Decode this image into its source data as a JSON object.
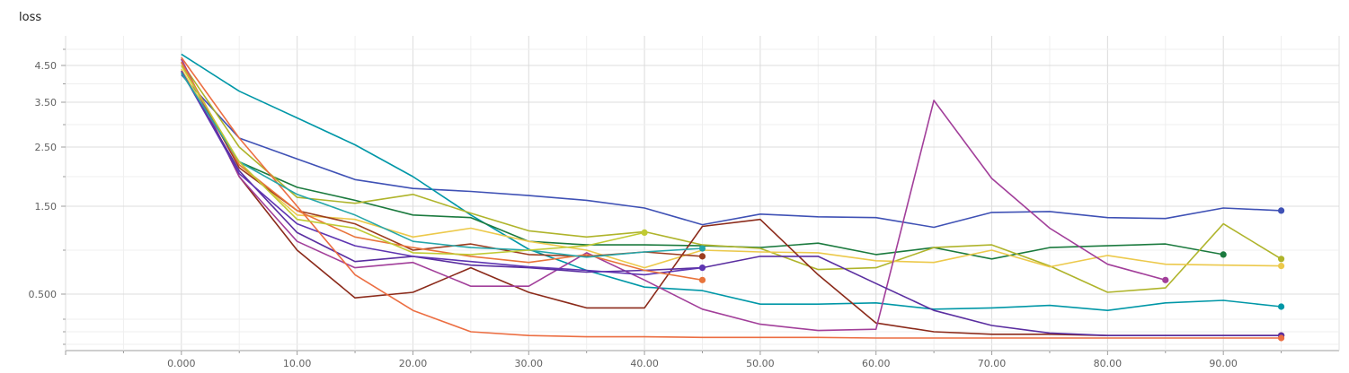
{
  "chart_data": {
    "type": "line",
    "title": "loss",
    "xlabel": "",
    "ylabel": "",
    "xlim": [
      -10,
      100
    ],
    "ylim": [
      0.05,
      5.25
    ],
    "grid": true,
    "x_ticks": [
      0,
      10,
      20,
      30,
      40,
      50,
      60,
      70,
      80,
      90
    ],
    "x_tick_labels": [
      "0.000",
      "10.00",
      "20.00",
      "30.00",
      "40.00",
      "50.00",
      "60.00",
      "70.00",
      "80.00",
      "90.00"
    ],
    "y_ticks": [
      0.5,
      1.5,
      2.5,
      3.5,
      4.5
    ],
    "y_tick_labels": [
      "0.500",
      "1.50",
      "2.50",
      "3.50",
      "4.50"
    ],
    "series": [
      {
        "color": "#3f51b5",
        "x": [
          0,
          5,
          10,
          15,
          20,
          25,
          30,
          35,
          40,
          45,
          50,
          55,
          60,
          65,
          70,
          75,
          80,
          85,
          90,
          95
        ],
        "y": [
          4.25,
          2.7,
          2.3,
          1.95,
          1.8,
          1.75,
          1.68,
          1.6,
          1.48,
          1.29,
          1.41,
          1.38,
          1.37,
          1.26,
          1.43,
          1.44,
          1.37,
          1.36,
          1.48,
          1.45
        ]
      },
      {
        "color": "#0097a7",
        "x": [
          0,
          5,
          10,
          15,
          20,
          25,
          30,
          35,
          40,
          45,
          50,
          55,
          60,
          65,
          70,
          75,
          80,
          85,
          90,
          95
        ],
        "y": [
          4.85,
          3.8,
          3.15,
          2.55,
          2.0,
          1.4,
          1.01,
          0.77,
          0.58,
          0.54,
          0.42,
          0.42,
          0.43,
          0.38,
          0.39,
          0.41,
          0.37,
          0.43,
          0.45,
          0.4
        ]
      },
      {
        "color": "#1b7a3e",
        "x": [
          0,
          5,
          10,
          15,
          20,
          25,
          30,
          35,
          40,
          45,
          50,
          55,
          60,
          65,
          70,
          75,
          80,
          85,
          90
        ],
        "y": [
          4.3,
          2.25,
          1.82,
          1.6,
          1.4,
          1.37,
          1.1,
          1.06,
          1.06,
          1.05,
          1.03,
          1.08,
          0.95,
          1.03,
          0.9,
          1.03,
          1.05,
          1.07,
          0.95
        ]
      },
      {
        "color": "#afb42b",
        "x": [
          0,
          5,
          10,
          15,
          20,
          25,
          30,
          35,
          40,
          45,
          50,
          55,
          60,
          65,
          70,
          75,
          80,
          85,
          90,
          95
        ],
        "y": [
          4.6,
          2.5,
          1.65,
          1.55,
          1.7,
          1.42,
          1.22,
          1.15,
          1.21,
          1.06,
          1.02,
          0.78,
          0.8,
          1.03,
          1.06,
          0.82,
          0.52,
          0.57,
          1.3,
          0.9
        ]
      },
      {
        "color": "#ecc94b",
        "x": [
          0,
          5,
          10,
          15,
          20,
          25,
          30,
          35,
          40,
          45,
          50,
          55,
          60,
          65,
          70,
          75,
          80,
          85,
          90,
          95
        ],
        "y": [
          4.4,
          2.2,
          1.4,
          1.35,
          1.15,
          1.25,
          1.1,
          1.0,
          0.8,
          1.0,
          0.98,
          0.97,
          0.88,
          0.86,
          1.0,
          0.81,
          0.94,
          0.84,
          0.83,
          0.82
        ]
      },
      {
        "color": "#8b2a1a",
        "x": [
          0,
          5,
          10,
          15,
          20,
          25,
          30,
          35,
          40,
          45,
          50,
          55,
          60,
          65,
          70,
          75,
          80,
          85,
          90,
          95
        ],
        "y": [
          4.7,
          2.0,
          1.0,
          0.47,
          0.52,
          0.8,
          0.52,
          0.39,
          0.39,
          1.27,
          1.35,
          0.72,
          0.27,
          0.2,
          0.18,
          0.18,
          0.17,
          0.17,
          0.17,
          0.17
        ]
      },
      {
        "color": "#a23f9a",
        "x": [
          0,
          5,
          10,
          15,
          20,
          25,
          30,
          35,
          40,
          45,
          50,
          55,
          60,
          65,
          70,
          75,
          80,
          85
        ],
        "y": [
          4.7,
          2.0,
          1.1,
          0.8,
          0.86,
          0.59,
          0.59,
          0.97,
          0.66,
          0.38,
          0.26,
          0.21,
          0.22,
          3.55,
          1.97,
          1.25,
          0.84,
          0.66
        ]
      },
      {
        "color": "#5a2ea0",
        "x": [
          0,
          5,
          10,
          15,
          20,
          25,
          30,
          35,
          40,
          45,
          50,
          55,
          60,
          65,
          70,
          75,
          80,
          85,
          90,
          95
        ],
        "y": [
          4.35,
          2.1,
          1.2,
          0.87,
          0.93,
          0.83,
          0.8,
          0.75,
          0.77,
          0.8,
          0.93,
          0.93,
          0.62,
          0.37,
          0.25,
          0.19,
          0.17,
          0.17,
          0.17,
          0.17
        ]
      },
      {
        "color": "#5e35b1",
        "x": [
          0,
          5,
          10,
          15,
          20,
          25,
          30,
          35,
          40,
          45
        ],
        "y": [
          4.35,
          2.05,
          1.3,
          1.05,
          0.93,
          0.87,
          0.81,
          0.77,
          0.72,
          0.8
        ]
      },
      {
        "color": "#9c3d1f",
        "x": [
          0,
          5,
          10,
          15,
          20,
          25,
          30,
          35,
          40,
          45
        ],
        "y": [
          4.6,
          2.15,
          1.45,
          1.3,
          1.0,
          1.07,
          0.95,
          0.93,
          0.98,
          0.93
        ]
      },
      {
        "color": "#ec6e42",
        "x": [
          0,
          5,
          10,
          15,
          20,
          25,
          30,
          35,
          40,
          45,
          50,
          55,
          60,
          65,
          70,
          75,
          80,
          85,
          90,
          95
        ],
        "y": [
          4.75,
          2.7,
          1.5,
          0.72,
          0.37,
          0.2,
          0.17,
          0.16,
          0.16,
          0.155,
          0.155,
          0.155,
          0.15,
          0.15,
          0.15,
          0.15,
          0.15,
          0.15,
          0.15,
          0.15
        ]
      },
      {
        "color": "#e8743b",
        "x": [
          0,
          5,
          10,
          15,
          20,
          25,
          30,
          35,
          40,
          45
        ],
        "y": [
          4.6,
          2.2,
          1.45,
          1.15,
          1.03,
          0.93,
          0.86,
          0.95,
          0.77,
          0.66
        ]
      },
      {
        "color": "#26a6a9",
        "x": [
          0,
          5,
          10,
          15,
          20,
          25,
          30,
          35,
          40,
          45
        ],
        "y": [
          4.3,
          2.25,
          1.7,
          1.4,
          1.1,
          1.03,
          1.0,
          0.92,
          0.98,
          1.02
        ]
      },
      {
        "color": "#c0ca33",
        "x": [
          0,
          5,
          10,
          15,
          20,
          25,
          30,
          35,
          40
        ],
        "y": [
          4.5,
          2.25,
          1.35,
          1.25,
          0.97,
          0.95,
          1.0,
          1.05,
          1.2
        ]
      }
    ]
  }
}
